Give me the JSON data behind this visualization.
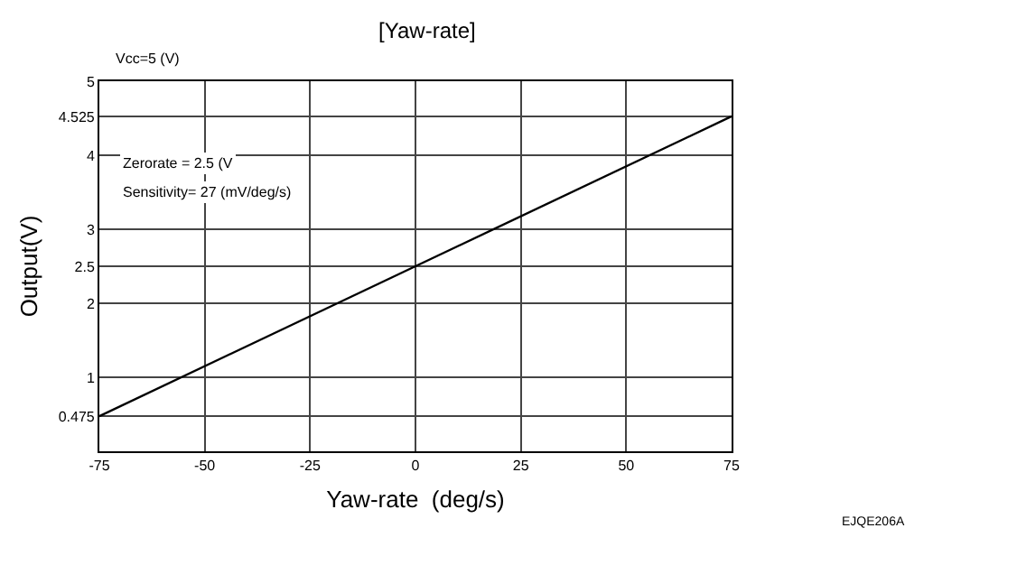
{
  "chart_data": {
    "type": "line",
    "title": "[Yaw-rate]",
    "xlabel": "Yaw-rate  (deg/s)",
    "ylabel": "Output(V)",
    "x": [
      -75,
      75
    ],
    "series": [
      {
        "color": "#000000",
        "values": [
          0.475,
          4.525
        ]
      }
    ],
    "xlim": [
      -75,
      75
    ],
    "xticks": [
      -75,
      -50,
      -25,
      0,
      25,
      50,
      75
    ],
    "ylim": [
      0,
      5
    ],
    "yticks": [
      0.475,
      1,
      2,
      2.5,
      3,
      4,
      4.525,
      5
    ],
    "grid": true,
    "legend": false,
    "marker": "none",
    "line_style": "solid",
    "annotations": [
      "Vcc=5 (V)",
      "Zerorate = 2.5 (V",
      "Sensitivity= 27 (mV/deg/s)",
      "EJQE206A"
    ]
  }
}
